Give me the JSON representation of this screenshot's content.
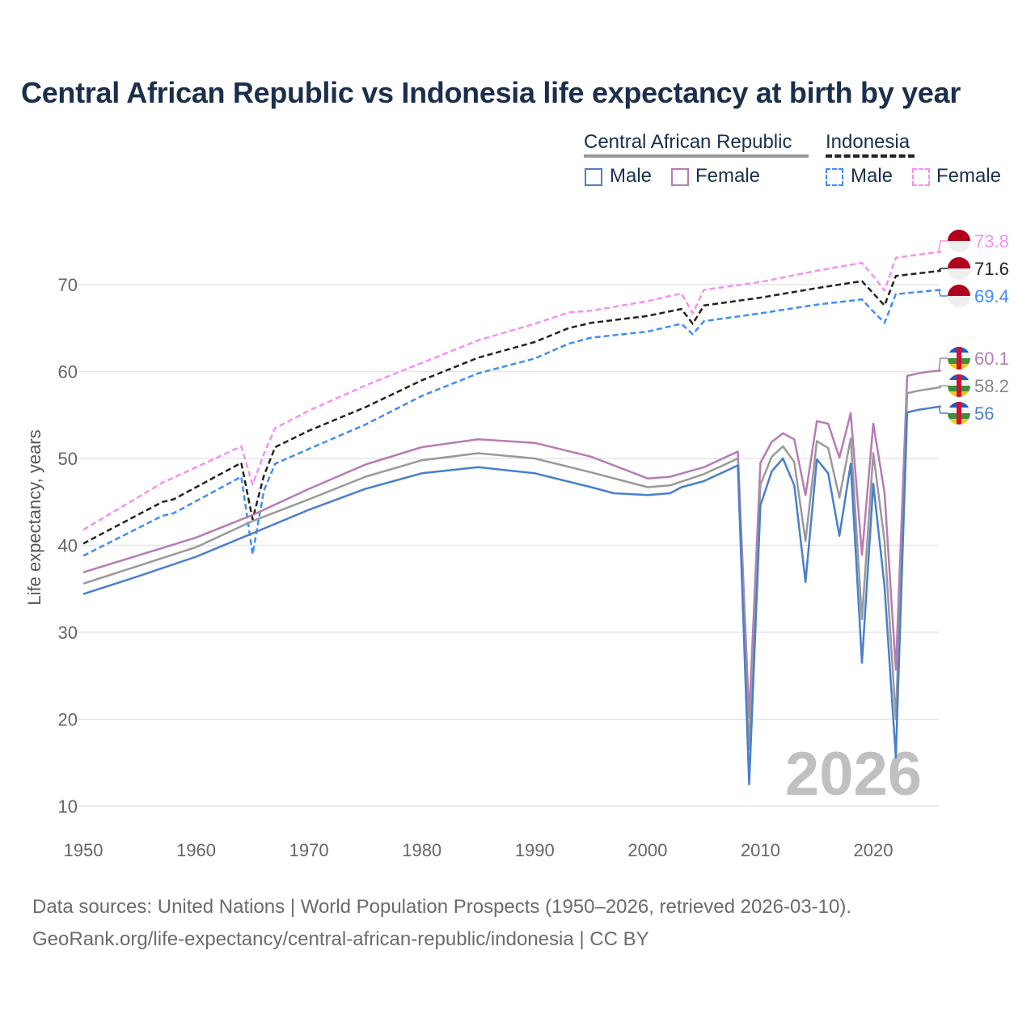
{
  "title": "Central African Republic vs Indonesia life expectancy at birth by year",
  "legend": {
    "group1": "Central African Republic",
    "group2": "Indonesia",
    "male": "Male",
    "female": "Female"
  },
  "year_watermark": "2026",
  "source_line1": "Data sources: United Nations | World Population Prospects (1950–2026, retrieved 2026-03-10).",
  "source_line2": "GeoRank.org/life-expectancy/central-african-republic/indonesia | CC BY",
  "chart_data": {
    "type": "line",
    "title": "Central African Republic vs Indonesia life expectancy at birth by year",
    "xlabel": "",
    "ylabel": "Life expectancy, years",
    "xlim": [
      1950,
      2026
    ],
    "ylim": [
      10,
      76
    ],
    "xticks": [
      1950,
      1960,
      1970,
      1980,
      1990,
      2000,
      2010,
      2020
    ],
    "yticks": [
      10,
      20,
      30,
      40,
      50,
      60,
      70
    ],
    "grid": "horizontal",
    "legend_placement": "top-right",
    "series": [
      {
        "name": "Indonesia Female",
        "color": "#f98ef5",
        "dash": true,
        "end_label": "73.8",
        "flag": "indonesia",
        "points": [
          [
            1950,
            41.8
          ],
          [
            1957,
            47.2
          ],
          [
            1958,
            47.8
          ],
          [
            1964,
            51.4
          ],
          [
            1965,
            47.0
          ],
          [
            1966,
            50.5
          ],
          [
            1967,
            53.5
          ],
          [
            1970,
            55.5
          ],
          [
            1975,
            58.4
          ],
          [
            1980,
            61.0
          ],
          [
            1985,
            63.6
          ],
          [
            1990,
            65.5
          ],
          [
            1993,
            66.8
          ],
          [
            1995,
            67.0
          ],
          [
            2000,
            68.1
          ],
          [
            2003,
            69.0
          ],
          [
            2004,
            66.7
          ],
          [
            2005,
            69.4
          ],
          [
            2010,
            70.3
          ],
          [
            2015,
            71.6
          ],
          [
            2019,
            72.5
          ],
          [
            2020,
            71.0
          ],
          [
            2021,
            69.3
          ],
          [
            2022,
            73.1
          ],
          [
            2026,
            73.8
          ]
        ]
      },
      {
        "name": "Indonesia",
        "color": "#222222",
        "dash": true,
        "end_label": "71.6",
        "flag": "indonesia",
        "points": [
          [
            1950,
            40.2
          ],
          [
            1957,
            45.0
          ],
          [
            1958,
            45.3
          ],
          [
            1964,
            49.5
          ],
          [
            1965,
            43.0
          ],
          [
            1966,
            48.0
          ],
          [
            1967,
            51.3
          ],
          [
            1970,
            53.2
          ],
          [
            1975,
            55.9
          ],
          [
            1980,
            59.0
          ],
          [
            1985,
            61.6
          ],
          [
            1990,
            63.4
          ],
          [
            1993,
            65.0
          ],
          [
            1995,
            65.6
          ],
          [
            2000,
            66.4
          ],
          [
            2003,
            67.2
          ],
          [
            2004,
            65.5
          ],
          [
            2005,
            67.6
          ],
          [
            2010,
            68.5
          ],
          [
            2015,
            69.6
          ],
          [
            2019,
            70.4
          ],
          [
            2020,
            69.0
          ],
          [
            2021,
            67.6
          ],
          [
            2022,
            71.0
          ],
          [
            2026,
            71.6
          ]
        ]
      },
      {
        "name": "Indonesia Male",
        "color": "#3f8ef5",
        "dash": true,
        "end_label": "69.4",
        "flag": "indonesia",
        "points": [
          [
            1950,
            38.8
          ],
          [
            1957,
            43.4
          ],
          [
            1958,
            43.7
          ],
          [
            1964,
            47.9
          ],
          [
            1965,
            39.0
          ],
          [
            1966,
            46.3
          ],
          [
            1967,
            49.4
          ],
          [
            1970,
            51.1
          ],
          [
            1975,
            53.9
          ],
          [
            1980,
            57.2
          ],
          [
            1985,
            59.8
          ],
          [
            1990,
            61.5
          ],
          [
            1993,
            63.2
          ],
          [
            1995,
            63.9
          ],
          [
            2000,
            64.6
          ],
          [
            2003,
            65.5
          ],
          [
            2004,
            64.3
          ],
          [
            2005,
            65.8
          ],
          [
            2010,
            66.7
          ],
          [
            2015,
            67.7
          ],
          [
            2019,
            68.3
          ],
          [
            2020,
            66.9
          ],
          [
            2021,
            65.6
          ],
          [
            2022,
            68.9
          ],
          [
            2026,
            69.4
          ]
        ]
      },
      {
        "name": "Central African Republic Female",
        "color": "#b77bb6",
        "dash": false,
        "end_label": "60.1",
        "flag": "car",
        "points": [
          [
            1950,
            36.9
          ],
          [
            1960,
            40.9
          ],
          [
            1965,
            43.5
          ],
          [
            1970,
            46.5
          ],
          [
            1975,
            49.3
          ],
          [
            1980,
            51.3
          ],
          [
            1985,
            52.2
          ],
          [
            1990,
            51.8
          ],
          [
            1995,
            50.2
          ],
          [
            2000,
            47.7
          ],
          [
            2002,
            47.9
          ],
          [
            2005,
            49.0
          ],
          [
            2008,
            50.8
          ],
          [
            2009,
            20.2
          ],
          [
            2010,
            49.5
          ],
          [
            2011,
            51.9
          ],
          [
            2012,
            52.9
          ],
          [
            2013,
            52.2
          ],
          [
            2014,
            45.8
          ],
          [
            2015,
            54.3
          ],
          [
            2016,
            54.0
          ],
          [
            2017,
            50.1
          ],
          [
            2018,
            55.2
          ],
          [
            2019,
            38.9
          ],
          [
            2020,
            54.0
          ],
          [
            2021,
            46.1
          ],
          [
            2022,
            25.7
          ],
          [
            2023,
            59.5
          ],
          [
            2024,
            59.8
          ],
          [
            2025,
            60.0
          ],
          [
            2026,
            60.1
          ]
        ]
      },
      {
        "name": "Central African Republic",
        "color": "#999999",
        "dash": false,
        "end_label": "58.2",
        "flag": "car",
        "points": [
          [
            1950,
            35.6
          ],
          [
            1960,
            39.8
          ],
          [
            1965,
            42.8
          ],
          [
            1970,
            45.3
          ],
          [
            1975,
            47.9
          ],
          [
            1980,
            49.8
          ],
          [
            1985,
            50.6
          ],
          [
            1990,
            50.0
          ],
          [
            1995,
            48.4
          ],
          [
            2000,
            46.7
          ],
          [
            2002,
            46.9
          ],
          [
            2005,
            48.2
          ],
          [
            2008,
            50.0
          ],
          [
            2009,
            16.5
          ],
          [
            2010,
            47.0
          ],
          [
            2011,
            50.2
          ],
          [
            2012,
            51.4
          ],
          [
            2013,
            49.6
          ],
          [
            2014,
            40.5
          ],
          [
            2015,
            52.0
          ],
          [
            2016,
            51.2
          ],
          [
            2017,
            45.5
          ],
          [
            2018,
            52.3
          ],
          [
            2019,
            31.5
          ],
          [
            2020,
            50.6
          ],
          [
            2021,
            40.5
          ],
          [
            2022,
            20.0
          ],
          [
            2023,
            57.5
          ],
          [
            2024,
            57.8
          ],
          [
            2025,
            58.0
          ],
          [
            2026,
            58.2
          ]
        ]
      },
      {
        "name": "Central African Republic Male",
        "color": "#4a7fcb",
        "dash": false,
        "end_label": "56",
        "flag": "car",
        "points": [
          [
            1950,
            34.4
          ],
          [
            1955,
            36.5
          ],
          [
            1960,
            38.7
          ],
          [
            1965,
            41.4
          ],
          [
            1970,
            44.1
          ],
          [
            1975,
            46.5
          ],
          [
            1980,
            48.3
          ],
          [
            1985,
            49.0
          ],
          [
            1990,
            48.3
          ],
          [
            1995,
            46.7
          ],
          [
            1997,
            46.0
          ],
          [
            2000,
            45.8
          ],
          [
            2002,
            46.0
          ],
          [
            2003,
            46.7
          ],
          [
            2005,
            47.4
          ],
          [
            2008,
            49.2
          ],
          [
            2009,
            12.5
          ],
          [
            2010,
            44.6
          ],
          [
            2011,
            48.5
          ],
          [
            2012,
            50.0
          ],
          [
            2013,
            46.9
          ],
          [
            2014,
            35.8
          ],
          [
            2015,
            49.9
          ],
          [
            2016,
            48.3
          ],
          [
            2017,
            41.1
          ],
          [
            2018,
            49.4
          ],
          [
            2019,
            26.5
          ],
          [
            2020,
            47.1
          ],
          [
            2021,
            35.3
          ],
          [
            2022,
            15.6
          ],
          [
            2023,
            55.3
          ],
          [
            2024,
            55.6
          ],
          [
            2025,
            55.8
          ],
          [
            2026,
            56.0
          ]
        ]
      }
    ]
  }
}
